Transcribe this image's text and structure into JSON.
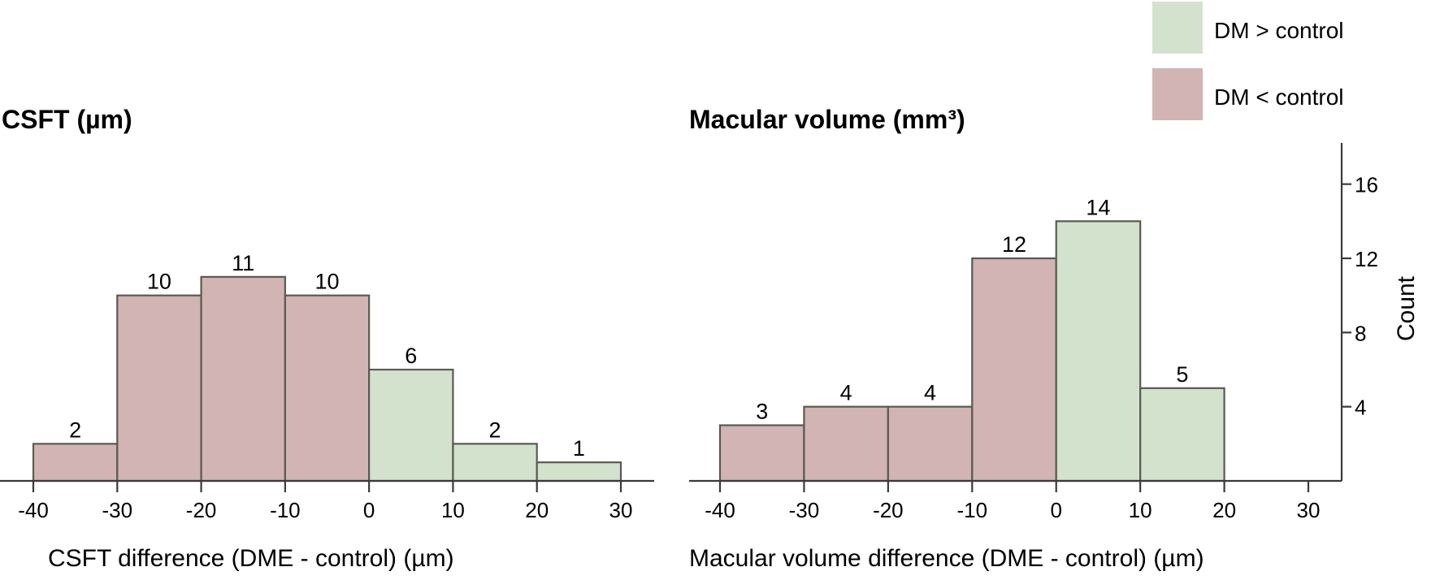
{
  "legend": [
    {
      "label": "DM > control",
      "color": "#d3e2cd"
    },
    {
      "label": "DM < control",
      "color": "#d1b4b3"
    }
  ],
  "chart_data": [
    {
      "type": "bar",
      "title": "CSFT (µm)",
      "xlabel": "CSFT difference (DME - control) (µm)",
      "bins": [
        [
          -40,
          -30
        ],
        [
          -30,
          -20
        ],
        [
          -20,
          -10
        ],
        [
          -10,
          0
        ],
        [
          0,
          10
        ],
        [
          10,
          20
        ],
        [
          20,
          30
        ]
      ],
      "values": [
        2,
        10,
        11,
        10,
        6,
        2,
        1
      ],
      "group": [
        "DM < control",
        "DM < control",
        "DM < control",
        "DM < control",
        "DM > control",
        "DM > control",
        "DM > control"
      ],
      "xticks": [
        -40,
        -30,
        -20,
        -10,
        0,
        10,
        20,
        30
      ],
      "xlim": [
        -40,
        30
      ],
      "ylim": [
        0,
        17.3
      ]
    },
    {
      "type": "bar",
      "title": "Macular volume (mm³)",
      "xlabel": "Macular volume difference (DME - control) (µm)",
      "ylabel": "Count",
      "bins": [
        [
          -40,
          -30
        ],
        [
          -30,
          -20
        ],
        [
          -20,
          -10
        ],
        [
          -10,
          0
        ],
        [
          0,
          10
        ],
        [
          10,
          20
        ]
      ],
      "values": [
        3,
        4,
        4,
        12,
        14,
        5
      ],
      "group": [
        "DM < control",
        "DM < control",
        "DM < control",
        "DM < control",
        "DM > control",
        "DM > control"
      ],
      "xticks": [
        -40,
        -30,
        -20,
        -10,
        0,
        10,
        20,
        30
      ],
      "yticks": [
        4,
        8,
        12,
        16
      ],
      "xlim": [
        -40,
        30
      ],
      "ylim": [
        0,
        17.3
      ]
    }
  ]
}
